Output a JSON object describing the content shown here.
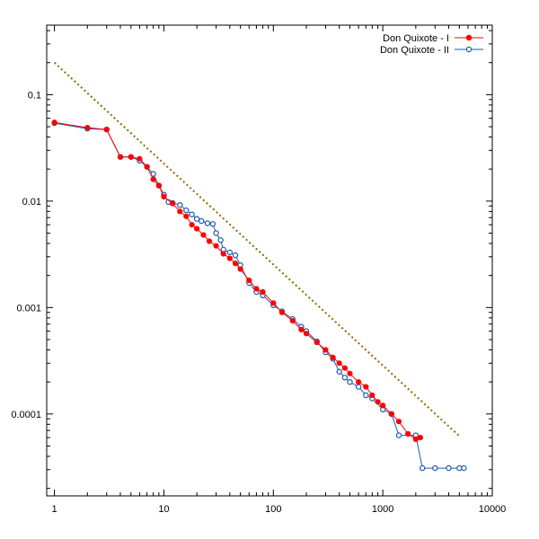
{
  "chart_data": {
    "type": "line",
    "title": "",
    "xlabel": "",
    "ylabel": "",
    "xscale": "log",
    "yscale": "log",
    "xlim": [
      0.85,
      10000
    ],
    "ylim": [
      1.7e-05,
      0.45
    ],
    "grid": false,
    "legend_position": "top-right",
    "x_ticks": [
      {
        "value": 1,
        "label": "1"
      },
      {
        "value": 10,
        "label": "10"
      },
      {
        "value": 100,
        "label": "100"
      },
      {
        "value": 1000,
        "label": "1000"
      },
      {
        "value": 10000,
        "label": "10000"
      }
    ],
    "y_ticks": [
      {
        "value": 0.1,
        "label": "0.1"
      },
      {
        "value": 0.01,
        "label": "0.01"
      },
      {
        "value": 0.001,
        "label": "0.001"
      },
      {
        "value": 0.0001,
        "label": "0.0001"
      }
    ],
    "series": [
      {
        "name": "Don Quixote - I",
        "color": "#ff0000",
        "marker": "filled-circle",
        "x": [
          1,
          2,
          3,
          4,
          5,
          6,
          7,
          8,
          9,
          10,
          12,
          14,
          16,
          18,
          20,
          23,
          26,
          30,
          35,
          40,
          45,
          50,
          60,
          70,
          80,
          100,
          120,
          150,
          180,
          200,
          250,
          300,
          350,
          400,
          450,
          500,
          600,
          700,
          800,
          900,
          1000,
          1200,
          1400,
          1700,
          2000,
          2200
        ],
        "y": [
          0.055,
          0.049,
          0.047,
          0.026,
          0.026,
          0.025,
          0.021,
          0.016,
          0.014,
          0.011,
          0.0095,
          0.008,
          0.0072,
          0.006,
          0.0055,
          0.0048,
          0.0042,
          0.0038,
          0.0032,
          0.0029,
          0.0026,
          0.0023,
          0.0018,
          0.0015,
          0.0014,
          0.0011,
          0.0009,
          0.00075,
          0.00062,
          0.00057,
          0.00047,
          0.0004,
          0.00034,
          0.0003,
          0.00027,
          0.00024,
          0.0002,
          0.00018,
          0.00015,
          0.00013,
          0.00012,
          0.0001,
          8.5e-05,
          6.5e-05,
          5.8e-05,
          6e-05
        ]
      },
      {
        "name": "Don Quixote - II",
        "color": "#1f5aa6",
        "marker": "open-circle",
        "x": [
          1,
          2,
          3,
          4,
          5,
          6,
          7,
          8,
          9,
          10,
          11,
          12,
          14,
          16,
          18,
          20,
          22,
          25,
          28,
          30,
          33,
          35,
          40,
          45,
          50,
          60,
          70,
          80,
          100,
          120,
          150,
          180,
          200,
          250,
          300,
          350,
          400,
          450,
          500,
          600,
          700,
          800,
          1000,
          1200,
          1400,
          2000,
          2300,
          3000,
          4000,
          5000,
          5500
        ],
        "y": [
          0.054,
          0.048,
          0.047,
          0.026,
          0.026,
          0.024,
          0.021,
          0.018,
          0.014,
          0.0115,
          0.0098,
          0.0096,
          0.0092,
          0.0082,
          0.0075,
          0.0068,
          0.0065,
          0.0062,
          0.0061,
          0.005,
          0.0043,
          0.0035,
          0.0033,
          0.0031,
          0.0025,
          0.0017,
          0.0014,
          0.0013,
          0.00105,
          0.00092,
          0.00078,
          0.00066,
          0.0006,
          0.00048,
          0.00038,
          0.00033,
          0.00025,
          0.00022,
          0.0002,
          0.00018,
          0.00015,
          0.00014,
          0.00011,
          0.0001,
          6.3e-05,
          6.3e-05,
          3.1e-05,
          3.1e-05,
          3.1e-05,
          3.1e-05,
          3.1e-05
        ]
      },
      {
        "name": "",
        "color": "#8b6a00",
        "style": "dotted",
        "x": [
          1,
          5000
        ],
        "y": [
          0.2,
          6.2e-05
        ]
      }
    ]
  }
}
